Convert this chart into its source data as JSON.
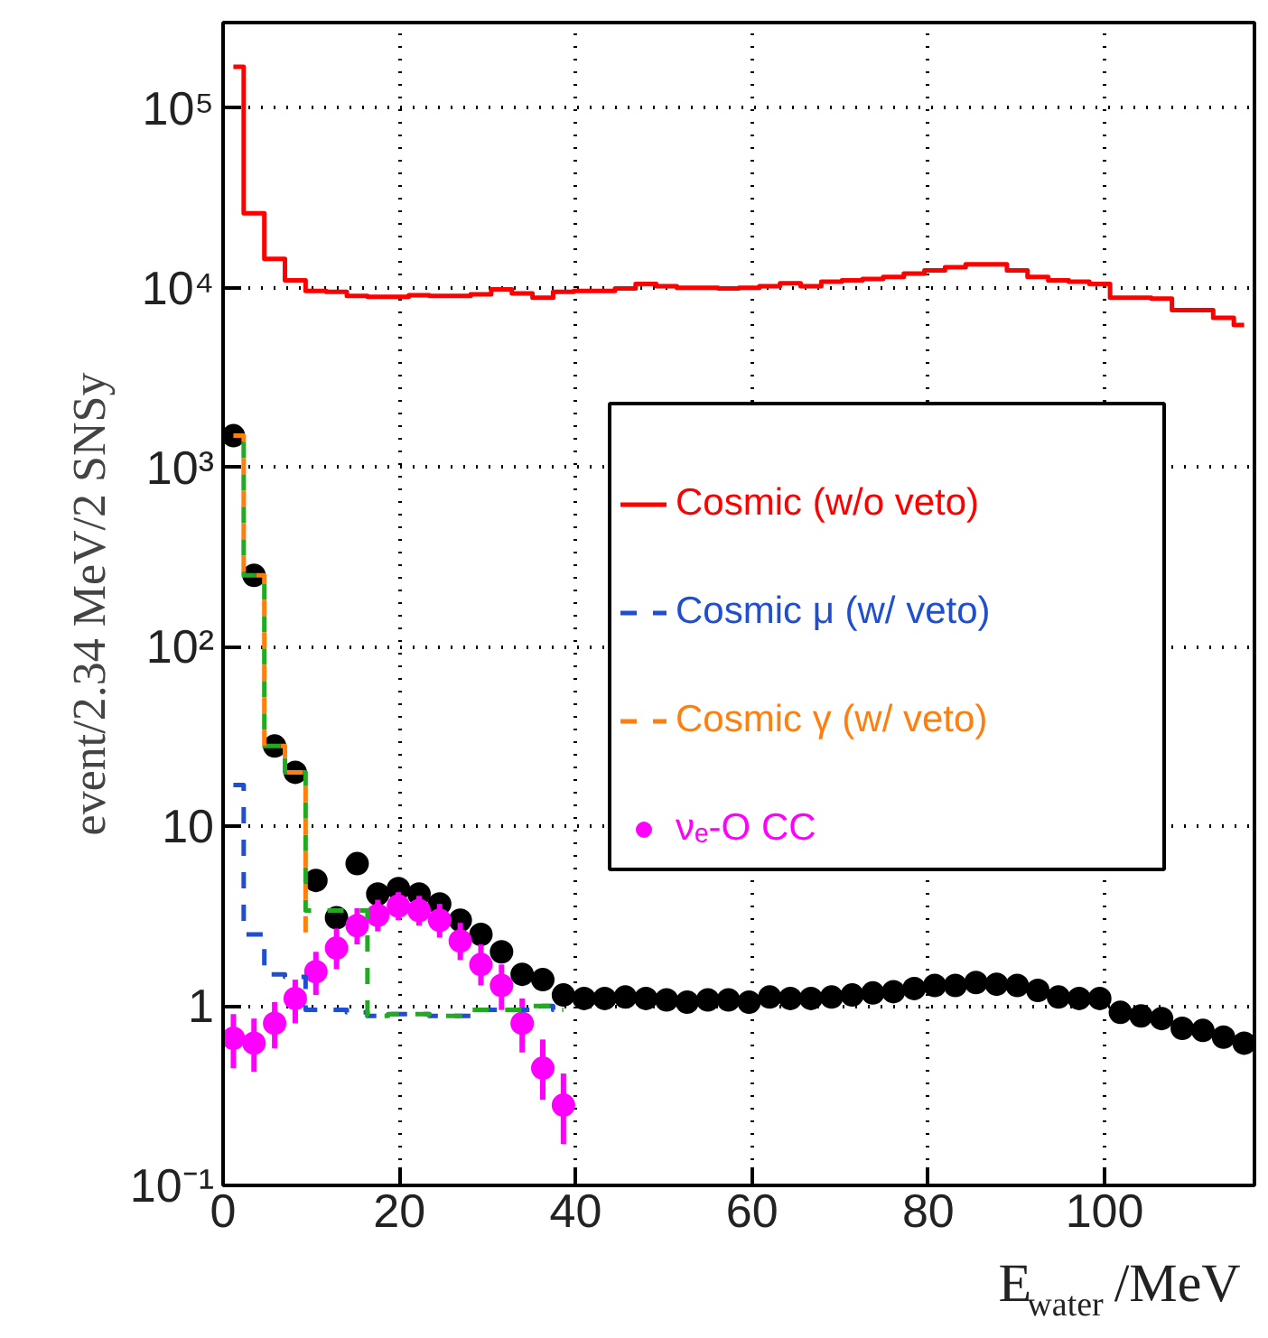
{
  "chart_data": {
    "type": "step",
    "xlabel": "E$_{water}$ /MeV",
    "ylabel": "event/2.34 MeV/2 SNSy",
    "x": [
      1.17,
      3.51,
      5.85,
      8.19,
      10.53,
      12.87,
      15.21,
      17.55,
      19.89,
      22.23,
      24.57,
      26.91,
      29.25,
      31.59,
      33.93,
      36.27,
      38.61,
      40.95,
      43.29,
      45.63,
      47.97,
      50.31,
      52.65,
      54.99,
      57.33,
      59.67,
      62.01,
      64.35,
      66.69,
      69.03,
      71.37,
      73.71,
      76.05,
      78.39,
      80.73,
      83.07,
      85.41,
      87.75,
      90.09,
      92.43,
      94.77,
      97.11,
      99.45,
      101.79,
      104.13,
      106.47,
      108.81,
      111.15,
      113.49,
      115.83
    ],
    "series": [
      {
        "name": "Cosmic (w/o veto)",
        "color": "#ff0000",
        "line_style": "solid",
        "values": [
          170000,
          26000,
          14500,
          11000,
          9600,
          9500,
          9000,
          8900,
          8900,
          9100,
          9000,
          9000,
          9200,
          9800,
          9300,
          8800,
          9500,
          9600,
          9600,
          9900,
          10500,
          10200,
          10000,
          10000,
          9900,
          10000,
          10200,
          10600,
          10200,
          10800,
          11000,
          11200,
          11500,
          12000,
          12500,
          13000,
          13500,
          13500,
          12500,
          11500,
          11000,
          10800,
          10500,
          8800,
          8800,
          8700,
          7500,
          7500,
          6800,
          6200
        ]
      },
      {
        "name": "Cosmic μ (w/ veto)",
        "color": "#1f4fd0",
        "line_style": "dashed",
        "values": [
          17,
          2.5,
          1.5,
          1.45,
          0.95,
          0.95,
          0.92,
          0.88,
          0.9,
          0.9,
          0.88,
          0.88,
          0.95,
          0.95,
          0.95,
          1.0,
          0.95,
          null,
          null,
          null,
          null,
          null,
          null,
          null,
          null,
          null,
          null,
          null,
          null,
          null,
          null,
          null,
          null,
          null,
          null,
          null,
          null,
          null,
          null,
          null,
          null,
          null,
          null,
          null,
          null,
          null,
          null,
          null,
          null,
          null
        ]
      },
      {
        "color": "#22aa22",
        "line_style": "dashed",
        "values": [
          1500,
          250,
          28,
          20,
          3.4,
          3.4,
          3.4,
          0.88,
          0.9,
          0.9,
          0.88,
          0.88,
          0.95,
          0.95,
          0.95,
          1.0,
          0.95,
          null,
          null,
          null,
          null,
          null,
          null,
          null,
          null,
          null,
          null,
          null,
          null,
          null,
          null,
          null,
          null,
          null,
          null,
          null,
          null,
          null,
          null,
          null,
          null,
          null,
          null,
          null,
          null,
          null,
          null,
          null,
          null,
          null
        ]
      },
      {
        "name": "Cosmic γ (w/ veto)",
        "color": "#ff7f0e",
        "line_style": "dashed",
        "values": [
          1500,
          250,
          28,
          20,
          2.4,
          null,
          null,
          null,
          null,
          null,
          null,
          null,
          null,
          null,
          null,
          null,
          null,
          null,
          null,
          null,
          null,
          null,
          null,
          null,
          null,
          null,
          null,
          null,
          null,
          null,
          null,
          null,
          null,
          null,
          null,
          null,
          null,
          null,
          null,
          null,
          null,
          null,
          null,
          null,
          null,
          null,
          null,
          null,
          null,
          null
        ]
      },
      {
        "name": "νₑ-O CC",
        "type": "scatter",
        "marker": "circle",
        "color": "#ff00ff",
        "x": [
          1.17,
          3.51,
          5.85,
          8.19,
          10.53,
          12.87,
          15.21,
          17.55,
          19.89,
          22.23,
          24.57,
          26.91,
          29.25,
          31.59,
          33.93,
          36.27,
          38.61
        ],
        "values": [
          0.66,
          0.62,
          0.8,
          1.1,
          1.55,
          2.1,
          2.8,
          3.2,
          3.6,
          3.4,
          3.0,
          2.3,
          1.7,
          1.3,
          0.8,
          0.45,
          0.28
        ],
        "errors": [
          [
            0.45,
            0.9
          ],
          [
            0.43,
            0.85
          ],
          [
            0.58,
            1.05
          ],
          [
            0.8,
            1.4
          ],
          [
            1.15,
            2.0
          ],
          [
            1.6,
            2.7
          ],
          [
            2.2,
            3.5
          ],
          [
            2.6,
            3.9
          ],
          [
            3.0,
            4.3
          ],
          [
            2.8,
            4.1
          ],
          [
            2.4,
            3.7
          ],
          [
            1.8,
            2.9
          ],
          [
            1.3,
            2.2
          ],
          [
            0.95,
            1.7
          ],
          [
            0.55,
            1.1
          ],
          [
            0.3,
            0.65
          ],
          [
            0.17,
            0.42
          ]
        ]
      },
      {
        "type": "scatter",
        "marker": "circle",
        "color": "#000000",
        "values": [
          1500,
          250,
          28,
          20,
          5.0,
          3.1,
          6.2,
          4.2,
          4.5,
          4.2,
          3.7,
          3.0,
          2.5,
          2.0,
          1.5,
          1.4,
          1.15,
          1.1,
          1.1,
          1.12,
          1.1,
          1.08,
          1.05,
          1.08,
          1.08,
          1.05,
          1.12,
          1.1,
          1.1,
          1.12,
          1.15,
          1.18,
          1.2,
          1.25,
          1.3,
          1.3,
          1.35,
          1.32,
          1.3,
          1.22,
          1.12,
          1.1,
          1.1,
          0.92,
          0.88,
          0.85,
          0.75,
          0.73,
          0.67,
          0.62
        ]
      }
    ],
    "xlim": [
      0,
      117
    ],
    "ylim": [
      0.1,
      300000
    ],
    "xticks": [
      0,
      20,
      40,
      60,
      80,
      100
    ],
    "yticks": [
      {
        "value": 0.1,
        "label": "10⁻¹"
      },
      1,
      10,
      {
        "value": 100,
        "label": "10²"
      },
      {
        "value": 1000,
        "label": "10³"
      },
      {
        "value": 10000,
        "label": "10⁴"
      },
      {
        "value": 100000,
        "label": "10⁵"
      }
    ],
    "log": "y",
    "grid": true,
    "legend": "right"
  }
}
